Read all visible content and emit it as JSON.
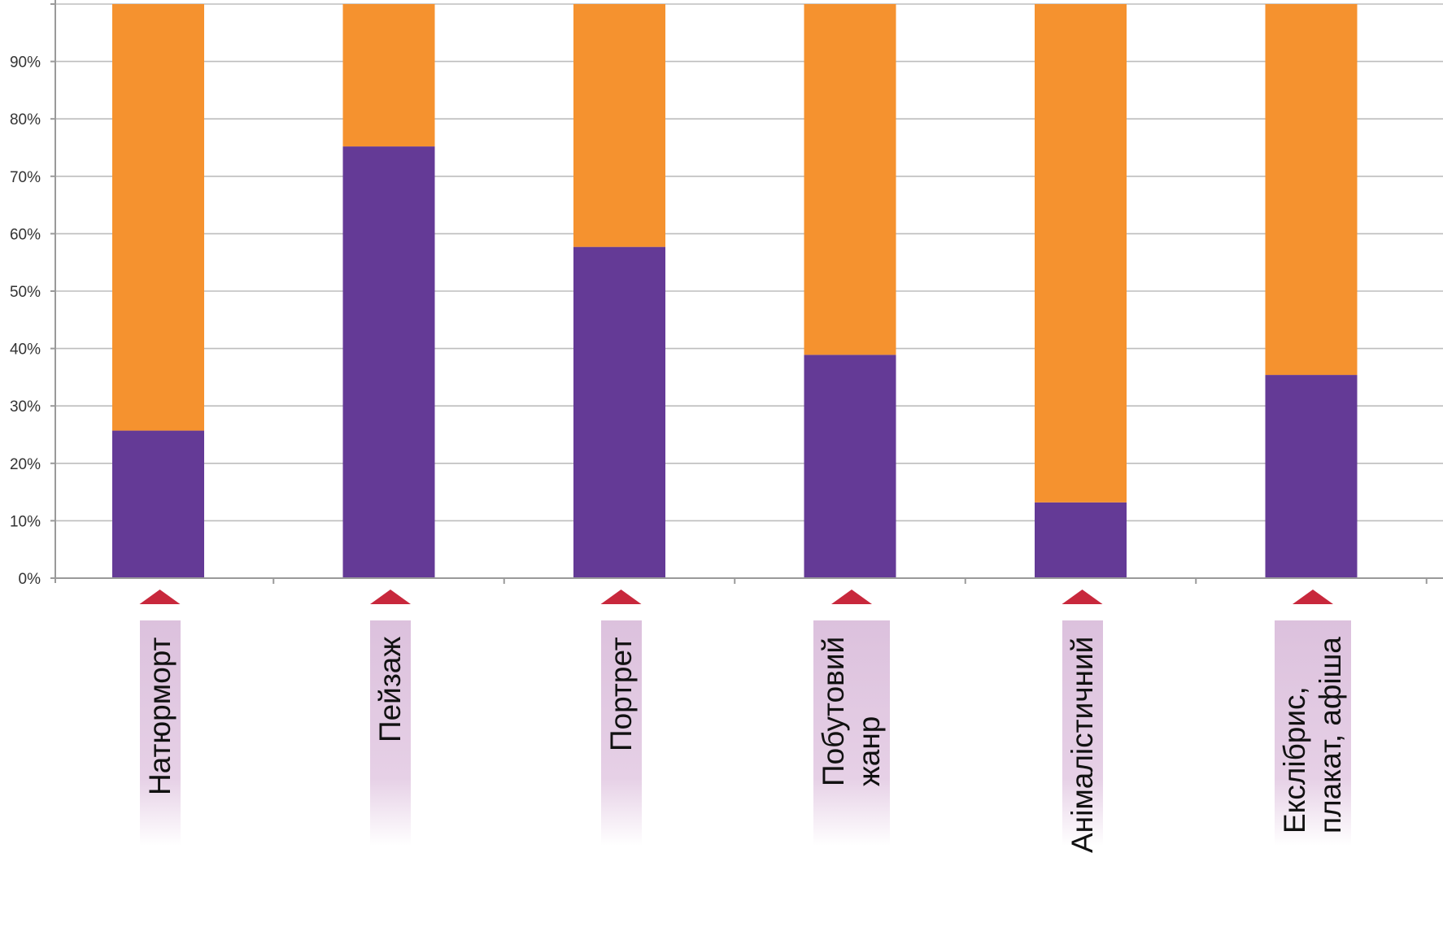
{
  "chart_data": {
    "type": "bar",
    "stacked": true,
    "percent": true,
    "categories": [
      {
        "id": "natyurmort",
        "lines": [
          "Натюрморт"
        ]
      },
      {
        "id": "peizazh",
        "lines": [
          "Пейзаж"
        ]
      },
      {
        "id": "portret",
        "lines": [
          "Портрет"
        ]
      },
      {
        "id": "pobutovyi",
        "lines": [
          "Побутовий",
          "жанр"
        ]
      },
      {
        "id": "animalistychnyi",
        "lines": [
          "Анімалістичний"
        ]
      },
      {
        "id": "ekslibrys",
        "lines": [
          "Екслібрис,",
          "плакат, афіша"
        ]
      }
    ],
    "series": [
      {
        "color": "#643a96",
        "values": [
          25.7,
          75.2,
          57.7,
          38.9,
          13.2,
          35.4
        ]
      },
      {
        "color": "#f5922f",
        "values": [
          74.3,
          24.8,
          42.3,
          61.1,
          86.8,
          64.6
        ]
      }
    ],
    "y_ticks": [
      "0%",
      "10%",
      "20%",
      "30%",
      "40%",
      "50%",
      "60%",
      "70%",
      "80%",
      "90%"
    ],
    "ylim": [
      0,
      100
    ],
    "grid": true,
    "legend": "none",
    "marker_color": "#c8283c"
  }
}
